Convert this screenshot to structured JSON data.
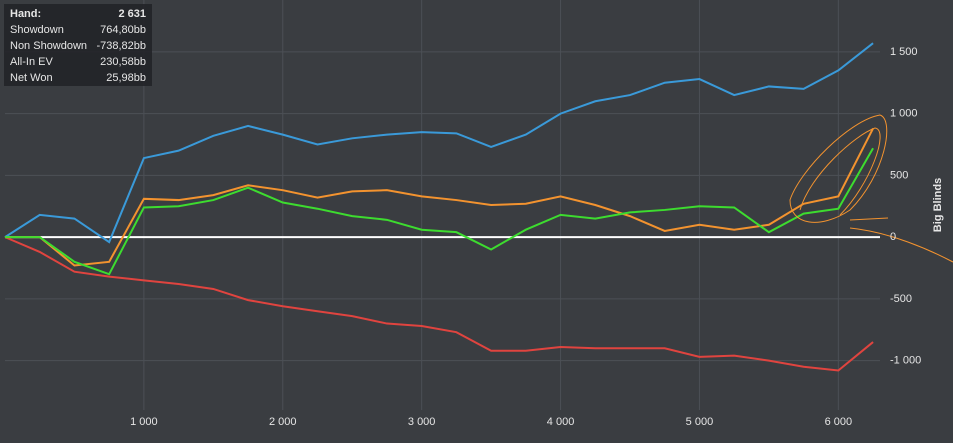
{
  "chart_data": {
    "type": "line",
    "y_axis_label": "Big Blinds",
    "hands_label": "Hand:",
    "hands": "2 631",
    "x": [
      0,
      250,
      500,
      750,
      1000,
      1250,
      1500,
      1750,
      2000,
      2250,
      2500,
      2750,
      3000,
      3250,
      3500,
      3750,
      4000,
      4250,
      4500,
      4750,
      5000,
      5250,
      5500,
      5750,
      6000,
      6250
    ],
    "series": [
      {
        "name": "Showdown",
        "total": "764,80bb",
        "color": "#3a9ad9",
        "values": [
          0,
          180,
          150,
          -40,
          640,
          700,
          820,
          900,
          830,
          750,
          800,
          830,
          850,
          840,
          730,
          830,
          1000,
          1100,
          1150,
          1250,
          1280,
          1150,
          1220,
          1200,
          1350,
          1570
        ]
      },
      {
        "name": "Non Showdown",
        "total": "-738,82bb",
        "color": "#e0443f",
        "values": [
          0,
          -120,
          -280,
          -320,
          -350,
          -380,
          -420,
          -510,
          -560,
          -600,
          -640,
          -700,
          -720,
          -770,
          -920,
          -920,
          -890,
          -900,
          -900,
          -900,
          -970,
          -960,
          -1000,
          -1050,
          -1080,
          -850
        ]
      },
      {
        "name": "All-In EV",
        "total": "230,58bb",
        "color": "#f3932f",
        "values": [
          0,
          0,
          -230,
          -200,
          310,
          300,
          340,
          420,
          380,
          320,
          370,
          380,
          330,
          300,
          260,
          270,
          330,
          260,
          170,
          50,
          100,
          60,
          100,
          270,
          330,
          880
        ]
      },
      {
        "name": "Net Won",
        "total": "25,98bb",
        "color": "#3ddc2f",
        "values": [
          0,
          0,
          -200,
          -300,
          240,
          250,
          300,
          400,
          280,
          230,
          170,
          140,
          60,
          40,
          -100,
          60,
          180,
          150,
          200,
          220,
          250,
          240,
          40,
          190,
          230,
          720
        ]
      }
    ],
    "xlim": [
      0,
      6300
    ],
    "ylim": [
      -1400,
      1920
    ],
    "xticks": [
      {
        "value": 1000,
        "label": "1 000"
      },
      {
        "value": 2000,
        "label": "2 000"
      },
      {
        "value": 3000,
        "label": "3 000"
      },
      {
        "value": 4000,
        "label": "4 000"
      },
      {
        "value": 5000,
        "label": "5 000"
      },
      {
        "value": 6000,
        "label": "6 000"
      }
    ],
    "yticks": [
      {
        "value": -1000,
        "label": "-1 000"
      },
      -500,
      0,
      500,
      {
        "value": 1000,
        "label": "1 000"
      },
      {
        "value": 1500,
        "label": "1 500"
      }
    ],
    "grid": true,
    "zero_line": true
  }
}
